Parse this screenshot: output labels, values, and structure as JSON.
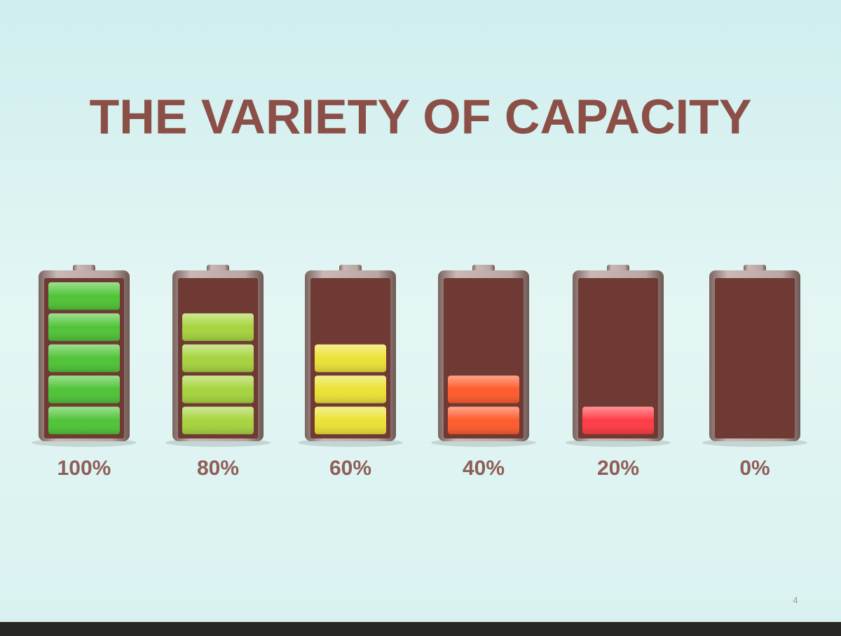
{
  "chart_data": {
    "type": "battery",
    "title": "THE VARIETY OF CAPACITY",
    "values": [
      100,
      80,
      60,
      40,
      20,
      0
    ],
    "value_labels": [
      "100%",
      "80%",
      "60%",
      "40%",
      "20%",
      "0%"
    ],
    "colors": [
      "#4fc437",
      "#a6d43e",
      "#ebe235",
      "#ff5b2c",
      "#ff3b45",
      "#6e3a33"
    ],
    "ylim": [
      0,
      100
    ],
    "page_number": "4"
  }
}
